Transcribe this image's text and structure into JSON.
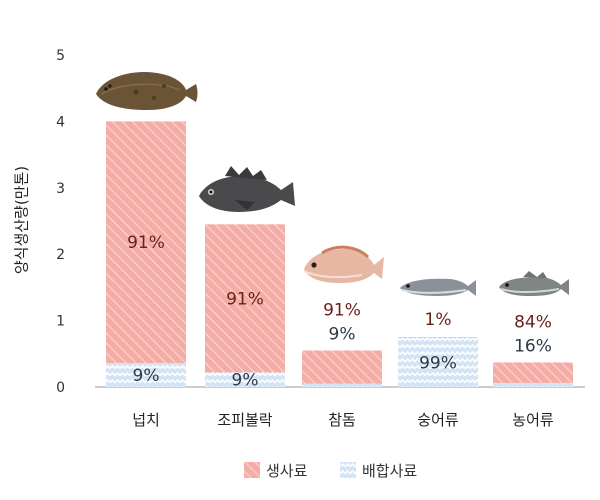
{
  "chart_data": {
    "type": "bar",
    "stacked": true,
    "ylabel": "양식생산량(만톤)",
    "ylim": [
      0,
      5
    ],
    "yticks": [
      "0",
      "1",
      "2",
      "3",
      "4",
      "5"
    ],
    "categories": [
      "넙치",
      "조피볼락",
      "참돔",
      "숭어류",
      "농어류"
    ],
    "totals": [
      4.0,
      2.45,
      0.55,
      0.75,
      0.37
    ],
    "series": [
      {
        "name": "배합사료",
        "values": [
          0.36,
          0.22,
          0.05,
          0.74,
          0.06
        ],
        "labels": [
          "9%",
          "9%",
          "9%",
          "99%",
          "16%"
        ],
        "color": "#c9dcf0",
        "text_color": "#2b3a4a"
      },
      {
        "name": "생사료",
        "values": [
          3.64,
          2.23,
          0.5,
          0.01,
          0.31
        ],
        "labels": [
          "91%",
          "91%",
          "91%",
          "1%",
          "84%"
        ],
        "color": "#f4aca6",
        "text_color": "#6b1f1a"
      }
    ],
    "fish_icons": [
      "flatfish-icon",
      "rockfish-icon",
      "sea-bream-icon",
      "mullet-icon",
      "sea-bass-icon"
    ],
    "legend": {
      "placement": "bottom-center",
      "items": [
        "생사료",
        "배합사료"
      ]
    },
    "grid": false
  }
}
